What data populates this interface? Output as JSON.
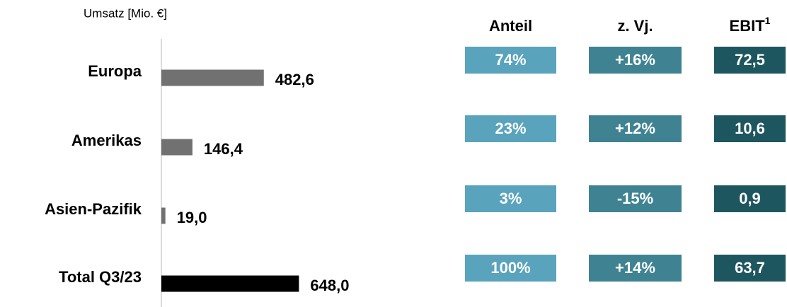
{
  "chart_data": {
    "type": "bar",
    "orientation": "horizontal",
    "axis_label": "Umsatz [Mio. €]",
    "categories": [
      "Europa",
      "Amerikas",
      "Asien-Pazifik",
      "Total Q3/23"
    ],
    "values": [
      482.6,
      146.4,
      19.0,
      648.0
    ],
    "value_labels": [
      "482,6",
      "146,4",
      "19,0",
      "648,0"
    ],
    "colors": [
      "#717171",
      "#717171",
      "#717171",
      "#000000"
    ]
  },
  "table": {
    "columns": [
      {
        "header": "Anteil",
        "color": "#5aa3bd",
        "cells": [
          "74%",
          "23%",
          "3%",
          "100%"
        ]
      },
      {
        "header": "z. Vj.",
        "color": "#3f8393",
        "cells": [
          "+16%",
          "+12%",
          "-15%",
          "+14%"
        ]
      },
      {
        "header": "EBIT",
        "footnote": "1",
        "color": "#1e5660",
        "cells": [
          "72,5",
          "10,6",
          "0,9",
          "63,7"
        ]
      }
    ]
  }
}
